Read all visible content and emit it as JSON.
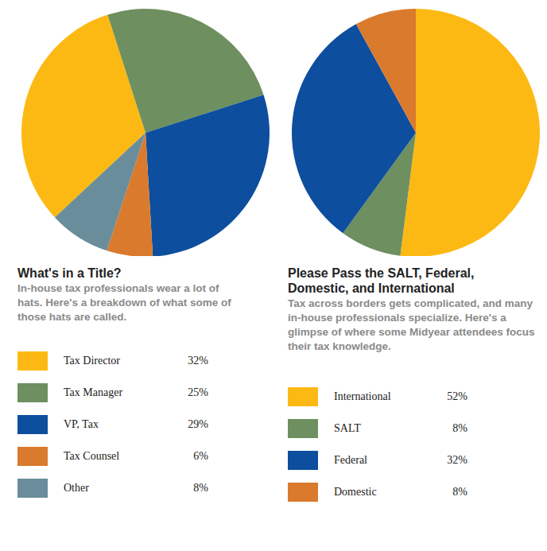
{
  "chart_data": [
    {
      "type": "pie",
      "title": "What's in a Title?",
      "subtitle": "In-house tax professionals wear a lot of hats. Here's a breakdown of what some of those hats are called.",
      "categories": [
        "Tax Director",
        "Tax Manager",
        "VP, Tax",
        "Tax Counsel",
        "Other"
      ],
      "values": [
        32,
        25,
        29,
        6,
        8
      ],
      "value_labels": [
        "32%",
        "25%",
        "29%",
        "6%",
        "8%"
      ],
      "colors": [
        "#FDB913",
        "#6E8F5F",
        "#0D4E9E",
        "#DA7A2C",
        "#6A8D9B"
      ],
      "legend": "bottom"
    },
    {
      "type": "pie",
      "title": "Please Pass the SALT, Federal, Domestic, and International",
      "subtitle": "Tax across borders gets complicated, and many in-house professionals specialize. Here's a glimpse of where some Midyear attendees focus their tax knowledge.",
      "categories": [
        "International",
        "SALT",
        "Federal",
        "Domestic"
      ],
      "values": [
        52,
        8,
        32,
        8
      ],
      "value_labels": [
        "52%",
        "8%",
        "32%",
        "8%"
      ],
      "colors": [
        "#FDB913",
        "#6E8F5F",
        "#0D4E9E",
        "#DA7A2C"
      ],
      "legend": "bottom"
    }
  ]
}
